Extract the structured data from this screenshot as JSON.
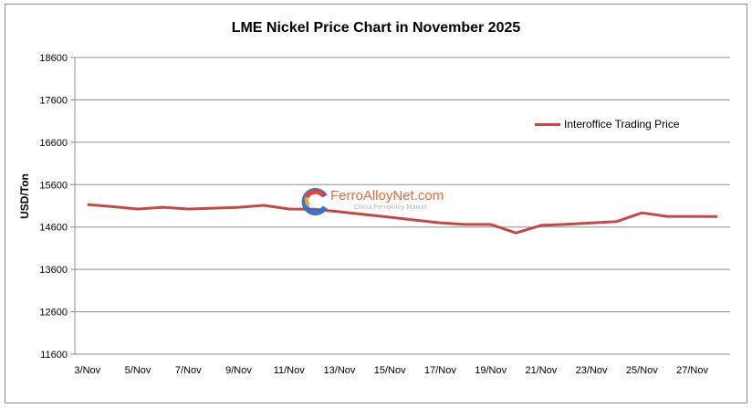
{
  "chart": {
    "title": "LME Nickel Price Chart in November 2025",
    "ylabel": "USD/Ton",
    "legend_label": "Interoffice Trading Price",
    "line_color": "#be4b48",
    "grid_color": "#8c8c8c",
    "watermark": {
      "main": "FerroAlloyNet.com",
      "sub": "China FerroAlloy Market"
    }
  },
  "chart_data": {
    "type": "line",
    "title": "LME Nickel Price Chart in November 2025",
    "xlabel": "",
    "ylabel": "USD/Ton",
    "ylim": [
      11600,
      18600
    ],
    "yticks": [
      11600,
      12600,
      13600,
      14600,
      15600,
      16600,
      17600,
      18600
    ],
    "grid": true,
    "legend_position": "upper right (inside plot)",
    "categories": [
      "3/Nov",
      "4/Nov",
      "5/Nov",
      "6/Nov",
      "7/Nov",
      "8/Nov",
      "9/Nov",
      "10/Nov",
      "11/Nov",
      "12/Nov",
      "13/Nov",
      "14/Nov",
      "15/Nov",
      "16/Nov",
      "17/Nov",
      "18/Nov",
      "19/Nov",
      "20/Nov",
      "21/Nov",
      "22/Nov",
      "23/Nov",
      "24/Nov",
      "25/Nov",
      "26/Nov",
      "27/Nov",
      "28/Nov"
    ],
    "xtick_labels": [
      "3/Nov",
      "5/Nov",
      "7/Nov",
      "9/Nov",
      "11/Nov",
      "13/Nov",
      "15/Nov",
      "17/Nov",
      "19/Nov",
      "21/Nov",
      "23/Nov",
      "25/Nov",
      "27/Nov"
    ],
    "series": [
      {
        "name": "Interoffice Trading Price",
        "color": "#be4b48",
        "values": [
          15130,
          15080,
          15025,
          15065,
          15025,
          15045,
          15065,
          15110,
          15025,
          15020,
          14960,
          14895,
          14830,
          14765,
          14700,
          14660,
          14660,
          14460,
          14640,
          14665,
          14695,
          14730,
          14935,
          14850,
          14850,
          14845
        ]
      }
    ]
  }
}
